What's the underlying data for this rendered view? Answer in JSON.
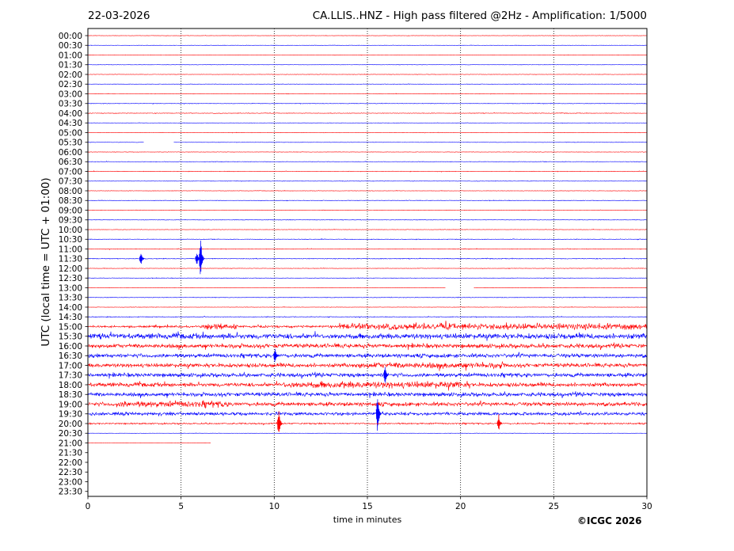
{
  "header": {
    "date": "22-03-2026",
    "title": "CA.LLIS..HNZ - High pass filtered @2Hz - Amplification: 1/5000"
  },
  "footer": {
    "copyright": "©ICGC 2026"
  },
  "chart_data": {
    "type": "line",
    "title": "CA.LLIS..HNZ - High pass filtered @2Hz - Amplification: 1/5000",
    "xlabel": "time in minutes",
    "ylabel": "UTC (local time = UTC + 01:00)",
    "xlim": [
      0,
      30
    ],
    "x_ticks": [
      0,
      5,
      10,
      15,
      20,
      25,
      30
    ],
    "x_tick_labels": [
      "0",
      "5",
      "10",
      "15",
      "20",
      "25",
      "30"
    ],
    "vertical_gridlines_at": [
      5,
      10,
      15,
      20,
      25
    ],
    "row_colors": [
      "#ff0000",
      "#0000ff"
    ],
    "rows": [
      {
        "label": "00:00",
        "activity": 0.05,
        "drawn_until": 30
      },
      {
        "label": "00:30",
        "activity": 0.05,
        "drawn_until": 30
      },
      {
        "label": "01:00",
        "activity": 0.05,
        "drawn_until": 30
      },
      {
        "label": "01:30",
        "activity": 0.05,
        "drawn_until": 30
      },
      {
        "label": "02:00",
        "activity": 0.06,
        "drawn_until": 30
      },
      {
        "label": "02:30",
        "activity": 0.06,
        "drawn_until": 30
      },
      {
        "label": "03:00",
        "activity": 0.06,
        "drawn_until": 30
      },
      {
        "label": "03:30",
        "activity": 0.07,
        "drawn_until": 30
      },
      {
        "label": "04:00",
        "activity": 0.08,
        "drawn_until": 30
      },
      {
        "label": "04:30",
        "activity": 0.05,
        "drawn_until": 30
      },
      {
        "label": "05:00",
        "activity": 0.06,
        "drawn_until": 30
      },
      {
        "label": "05:30",
        "activity": 0.05,
        "drawn_until": 30,
        "gaps": [
          [
            3.0,
            4.6
          ]
        ]
      },
      {
        "label": "06:00",
        "activity": 0.06,
        "drawn_until": 30
      },
      {
        "label": "06:30",
        "activity": 0.07,
        "drawn_until": 30
      },
      {
        "label": "07:00",
        "activity": 0.07,
        "drawn_until": 30
      },
      {
        "label": "07:30",
        "activity": 0.06,
        "drawn_until": 30
      },
      {
        "label": "08:00",
        "activity": 0.06,
        "drawn_until": 30
      },
      {
        "label": "08:30",
        "activity": 0.07,
        "drawn_until": 30
      },
      {
        "label": "09:00",
        "activity": 0.06,
        "drawn_until": 30
      },
      {
        "label": "09:30",
        "activity": 0.07,
        "drawn_until": 30
      },
      {
        "label": "10:00",
        "activity": 0.06,
        "drawn_until": 30
      },
      {
        "label": "10:30",
        "activity": 0.08,
        "drawn_until": 30
      },
      {
        "label": "11:00",
        "activity": 0.08,
        "drawn_until": 30
      },
      {
        "label": "11:30",
        "activity": 0.1,
        "drawn_until": 30,
        "spikes": [
          {
            "x": 2.9,
            "amp": 0.8
          },
          {
            "x": 5.9,
            "amp": 0.8
          },
          {
            "x": 6.1,
            "amp": 2.5
          }
        ]
      },
      {
        "label": "12:00",
        "activity": 0.07,
        "drawn_until": 30
      },
      {
        "label": "12:30",
        "activity": 0.07,
        "drawn_until": 30
      },
      {
        "label": "13:00",
        "activity": 0.05,
        "drawn_until": 30,
        "gaps": [
          [
            19.2,
            20.7
          ]
        ]
      },
      {
        "label": "13:30",
        "activity": 0.08,
        "drawn_until": 30
      },
      {
        "label": "14:00",
        "activity": 0.06,
        "drawn_until": 30
      },
      {
        "label": "14:30",
        "activity": 0.1,
        "drawn_until": 30
      },
      {
        "label": "15:00",
        "activity": 0.3,
        "drawn_until": 30,
        "bursts": [
          [
            6.2,
            8.0,
            0.9
          ],
          [
            13.5,
            30,
            0.9
          ]
        ]
      },
      {
        "label": "15:30",
        "activity": 0.75,
        "drawn_until": 30
      },
      {
        "label": "16:00",
        "activity": 0.6,
        "drawn_until": 30
      },
      {
        "label": "16:30",
        "activity": 0.55,
        "drawn_until": 30,
        "spikes": [
          {
            "x": 10.1,
            "amp": 1.0
          }
        ]
      },
      {
        "label": "17:00",
        "activity": 0.55,
        "drawn_until": 30,
        "bursts": [
          [
            14.3,
            22.5,
            0.85
          ]
        ]
      },
      {
        "label": "17:30",
        "activity": 0.55,
        "drawn_until": 30,
        "spikes": [
          {
            "x": 16.0,
            "amp": 1.2
          }
        ]
      },
      {
        "label": "18:00",
        "activity": 0.55,
        "drawn_until": 30,
        "bursts": [
          [
            10.5,
            20.5,
            0.95
          ]
        ]
      },
      {
        "label": "18:30",
        "activity": 0.55,
        "drawn_until": 30
      },
      {
        "label": "19:00",
        "activity": 0.55,
        "drawn_until": 30,
        "bursts": [
          [
            1.5,
            7.5,
            0.9
          ]
        ]
      },
      {
        "label": "19:30",
        "activity": 0.45,
        "drawn_until": 30,
        "spikes": [
          {
            "x": 15.6,
            "amp": 2.5
          }
        ]
      },
      {
        "label": "20:00",
        "activity": 0.2,
        "drawn_until": 30,
        "spikes": [
          {
            "x": 10.3,
            "amp": 1.8
          },
          {
            "x": 22.1,
            "amp": 1.0
          }
        ]
      },
      {
        "label": "20:30",
        "activity": 0.04,
        "drawn_until": 30
      },
      {
        "label": "21:00",
        "activity": 0.03,
        "drawn_until": 6.6
      },
      {
        "label": "21:30",
        "activity": 0,
        "drawn_until": 0
      },
      {
        "label": "22:00",
        "activity": 0,
        "drawn_until": 0
      },
      {
        "label": "22:30",
        "activity": 0,
        "drawn_until": 0
      },
      {
        "label": "23:00",
        "activity": 0,
        "drawn_until": 0
      },
      {
        "label": "23:30",
        "activity": 0,
        "drawn_until": 0
      }
    ]
  }
}
